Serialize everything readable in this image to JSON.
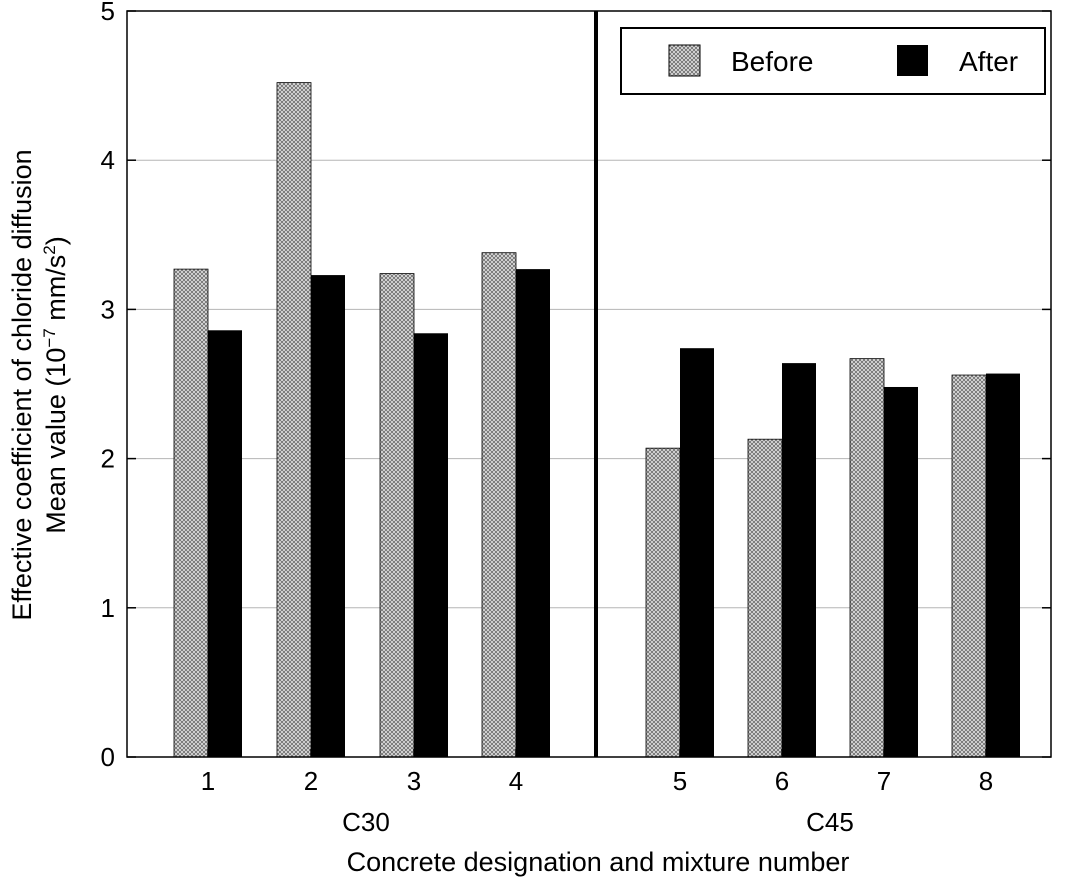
{
  "chart_data": {
    "type": "bar",
    "categories": [
      "1",
      "2",
      "3",
      "4",
      "5",
      "6",
      "7",
      "8"
    ],
    "series": [
      {
        "name": "Before",
        "values": [
          3.27,
          4.52,
          3.24,
          3.38,
          2.07,
          2.13,
          2.67,
          2.56
        ],
        "pattern": "crosshatch-gray"
      },
      {
        "name": "After",
        "values": [
          2.86,
          3.23,
          2.84,
          3.27,
          2.74,
          2.64,
          2.48,
          2.57
        ],
        "color": "#000000"
      }
    ],
    "groups": [
      {
        "label": "C30",
        "categories": [
          "1",
          "2",
          "3",
          "4"
        ]
      },
      {
        "label": "C45",
        "categories": [
          "5",
          "6",
          "7",
          "8"
        ]
      }
    ],
    "title": "",
    "xlabel": "Concrete designation and mixture number",
    "ylabel_line1": "Effective coefficient of chloride diffusion",
    "ylabel_line2_prefix": "Mean value (10",
    "ylabel_line2_exp1": "−7",
    "ylabel_line2_mid": " mm/s",
    "ylabel_line2_exp2": "2",
    "ylabel_line2_suffix": ")",
    "ylim": [
      0,
      5
    ],
    "yticks": [
      0,
      1,
      2,
      3,
      4,
      5
    ],
    "grid": "horizontal",
    "legend_position": "top-right",
    "group_separator": "between 4 and 5"
  }
}
